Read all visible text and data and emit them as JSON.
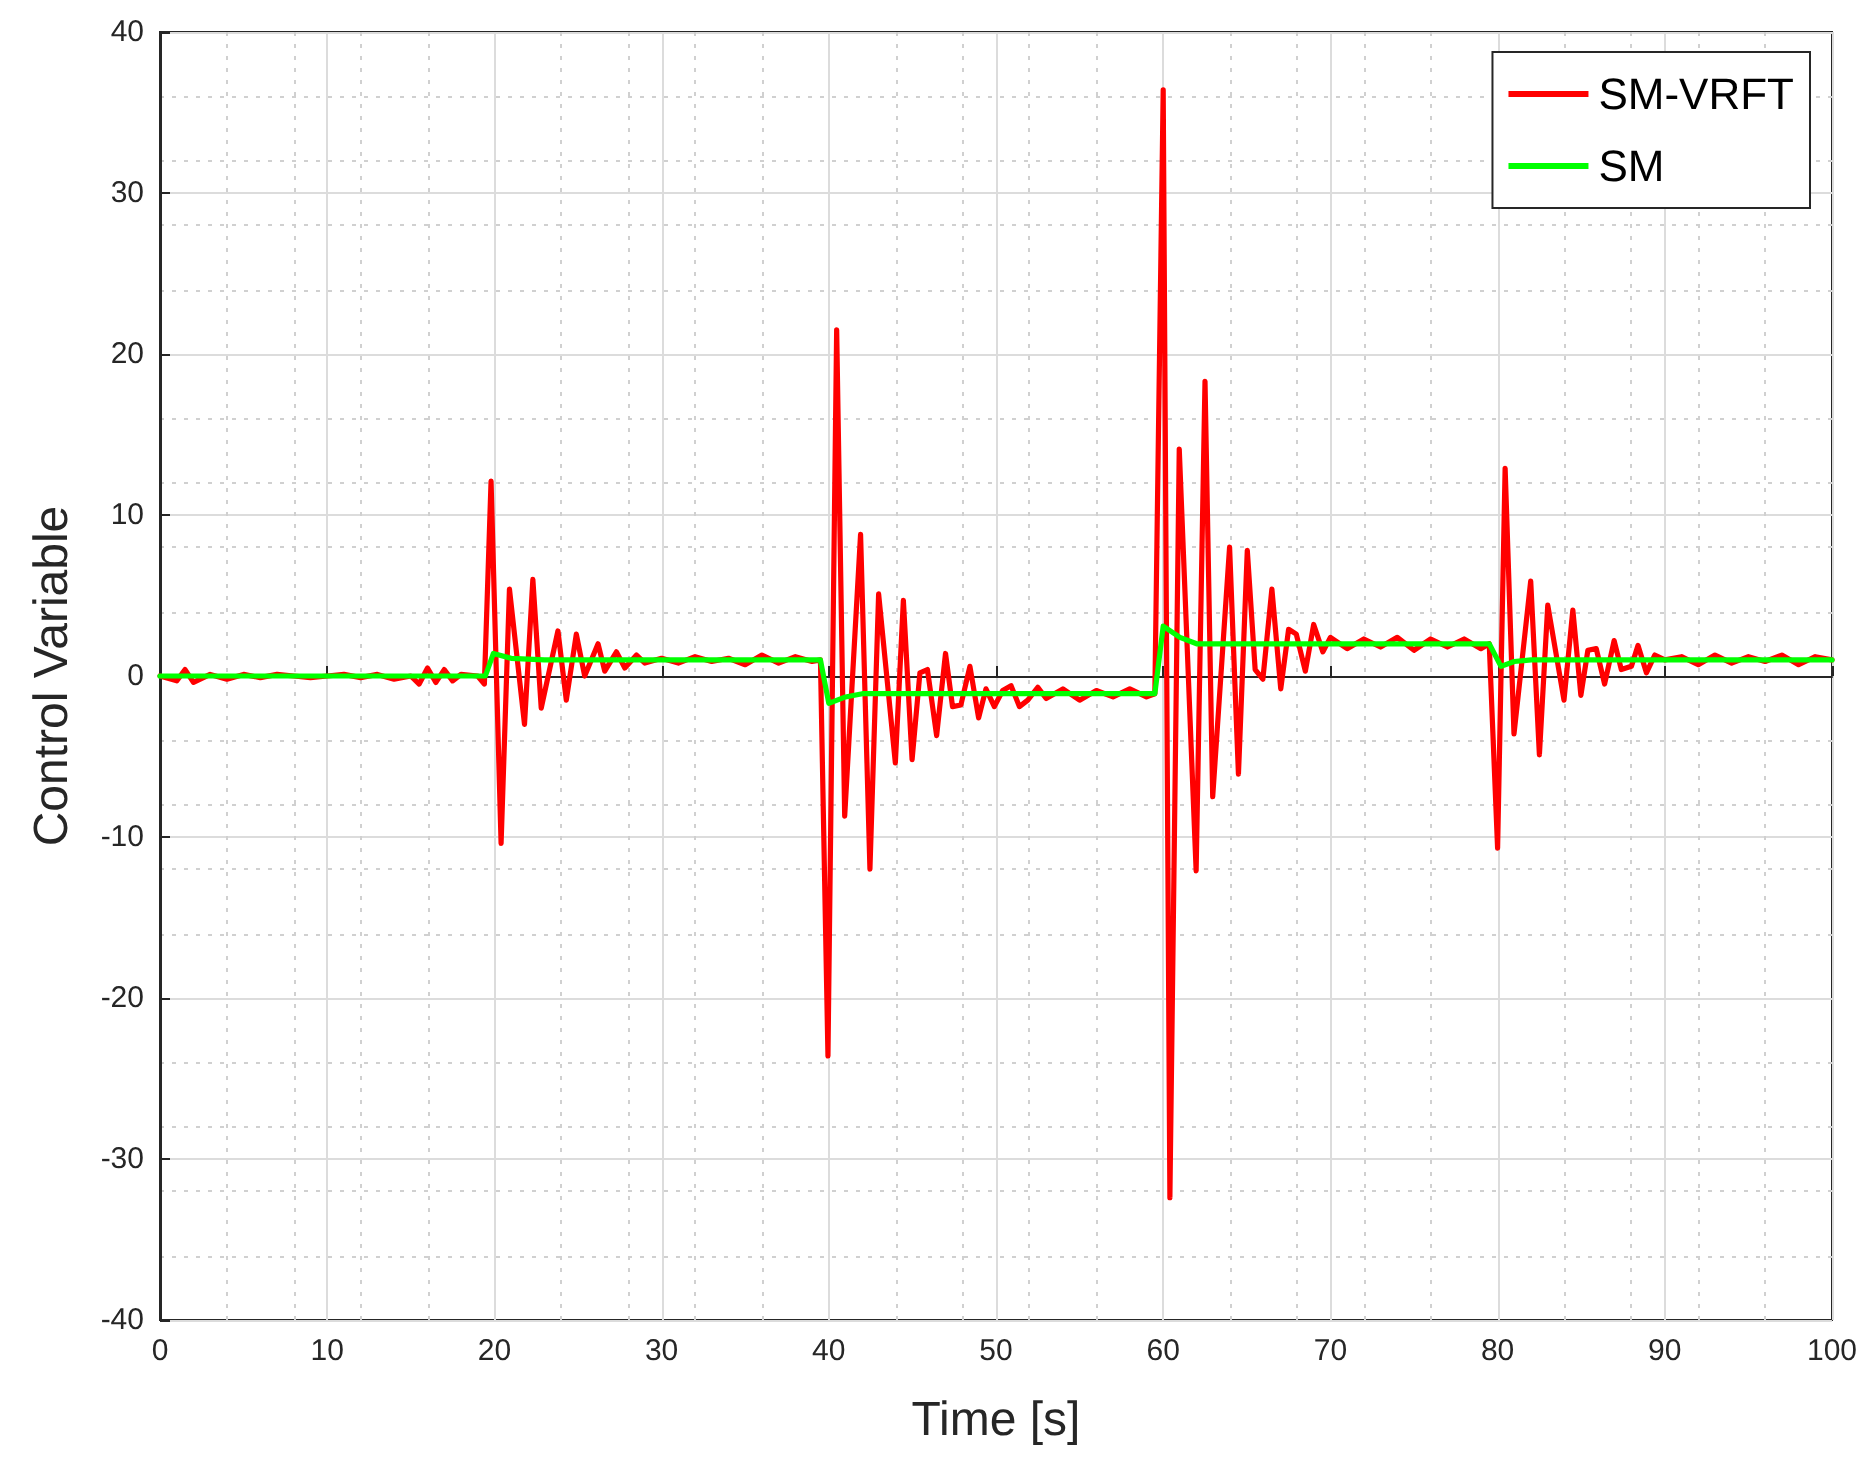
{
  "chart_data": {
    "type": "line",
    "xlabel": "Time [s]",
    "ylabel": "Control Variable",
    "xlim": [
      0,
      100
    ],
    "ylim": [
      -40,
      40
    ],
    "xticks": [
      0,
      10,
      20,
      30,
      40,
      50,
      60,
      70,
      80,
      90,
      100
    ],
    "yticks": [
      -40,
      -30,
      -20,
      -10,
      0,
      10,
      20,
      30,
      40
    ],
    "grid": true,
    "legend": "top right",
    "marker": "none",
    "line_style": "solid",
    "series": [
      {
        "name": "SM-VRFT",
        "color": "#ff0000",
        "x": [
          0,
          1,
          1.5,
          2,
          3,
          4,
          5,
          6,
          7,
          8,
          9,
          10,
          11,
          12,
          13,
          14,
          15,
          15.5,
          16,
          16.5,
          17,
          17.5,
          18,
          19,
          19.4,
          19.8,
          20.4,
          20.9,
          21.8,
          22.3,
          22.8,
          23.8,
          24.3,
          24.9,
          25.4,
          26.2,
          26.6,
          27.3,
          27.8,
          28.5,
          29,
          30,
          31,
          32,
          33,
          34,
          35,
          36,
          37,
          38,
          39,
          39.5,
          39.95,
          40.47,
          40.95,
          41.9,
          42.46,
          42.98,
          43.98,
          44.46,
          44.98,
          45.45,
          45.9,
          46.45,
          46.98,
          47.4,
          47.9,
          48.44,
          48.96,
          49.4,
          49.9,
          50.4,
          50.9,
          51.4,
          51.9,
          52.5,
          53,
          54,
          55,
          56,
          57,
          58,
          59,
          59.5,
          60,
          60.4,
          60.96,
          61.97,
          62.5,
          62.96,
          63.97,
          64.5,
          65.03,
          65.5,
          65.96,
          66.5,
          67.03,
          67.5,
          67.96,
          68.5,
          69,
          69.55,
          70,
          71,
          72,
          73,
          74,
          75,
          76,
          77,
          78,
          79,
          79.5,
          80,
          80.45,
          80.98,
          81.98,
          82.5,
          83,
          83.97,
          84.5,
          84.98,
          85.4,
          85.9,
          86.4,
          86.97,
          87.4,
          88,
          88.4,
          88.9,
          89.4,
          90,
          91,
          92,
          93,
          94,
          95,
          96,
          97,
          98,
          99,
          100
        ],
        "values": [
          0,
          -0.3,
          0.4,
          -0.4,
          0.1,
          -0.2,
          0.1,
          -0.1,
          0.1,
          0,
          -0.1,
          0,
          0.1,
          -0.1,
          0.1,
          -0.2,
          0,
          -0.5,
          0.5,
          -0.4,
          0.4,
          -0.3,
          0.1,
          0,
          -0.5,
          12.1,
          -10.4,
          5.4,
          -3,
          6,
          -2,
          2.8,
          -1.5,
          2.6,
          0,
          2,
          0.3,
          1.5,
          0.5,
          1.3,
          0.8,
          1.1,
          0.8,
          1.2,
          0.9,
          1.1,
          0.7,
          1.3,
          0.8,
          1.2,
          0.9,
          1,
          -23.6,
          21.5,
          -8.7,
          8.8,
          -12,
          5.1,
          -5.4,
          4.7,
          -5.2,
          0.2,
          0.4,
          -3.7,
          1.4,
          -1.9,
          -1.8,
          0.6,
          -2.6,
          -0.8,
          -1.9,
          -0.9,
          -0.6,
          -1.9,
          -1.5,
          -0.7,
          -1.4,
          -0.8,
          -1.5,
          -0.9,
          -1.3,
          -0.8,
          -1.3,
          -1.1,
          36.4,
          -32.4,
          14.1,
          -12.1,
          18.3,
          -7.5,
          8,
          -6.1,
          7.8,
          0.4,
          -0.2,
          5.4,
          -0.8,
          2.9,
          2.6,
          0.3,
          3.2,
          1.5,
          2.4,
          1.7,
          2.3,
          1.8,
          2.4,
          1.6,
          2.3,
          1.8,
          2.3,
          1.7,
          2,
          -10.7,
          12.9,
          -3.6,
          5.9,
          -4.9,
          4.4,
          -1.5,
          4.1,
          -1.2,
          1.6,
          1.7,
          -0.5,
          2.2,
          0.4,
          0.6,
          1.9,
          0.2,
          1.3,
          1,
          1.2,
          0.7,
          1.3,
          0.8,
          1.2,
          0.9,
          1.3,
          0.7,
          1.2,
          1
        ]
      },
      {
        "name": "SM",
        "color": "#00ff00",
        "x": [
          0,
          19.46,
          19.94,
          21,
          23,
          39.5,
          40,
          41,
          42,
          59.5,
          60,
          61,
          62,
          79.5,
          80.2,
          81,
          82,
          100
        ],
        "values": [
          0,
          0,
          1.4,
          1.1,
          1,
          1,
          -1.7,
          -1.3,
          -1.1,
          -1.1,
          3.1,
          2.4,
          2,
          2,
          0.6,
          0.9,
          1,
          1
        ]
      }
    ]
  }
}
